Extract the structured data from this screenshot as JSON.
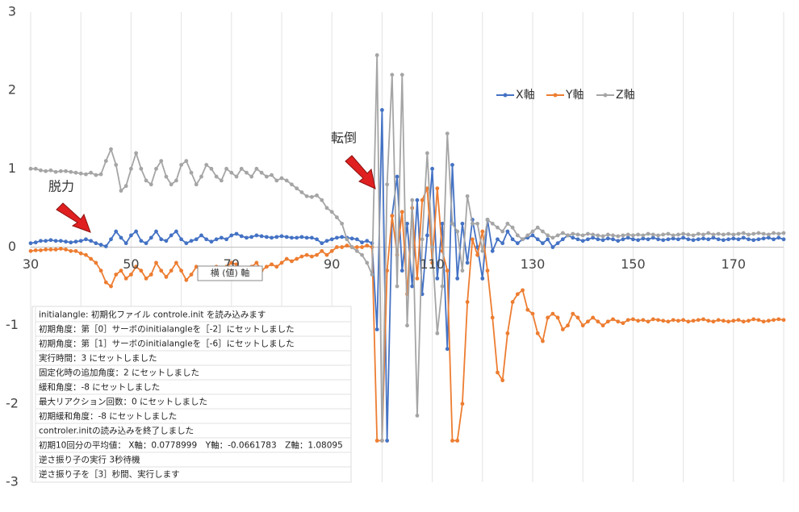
{
  "chart_data": {
    "type": "line",
    "x": [
      30,
      31,
      32,
      33,
      34,
      35,
      36,
      37,
      38,
      39,
      40,
      41,
      42,
      43,
      44,
      45,
      46,
      47,
      48,
      49,
      50,
      51,
      52,
      53,
      54,
      55,
      56,
      57,
      58,
      59,
      60,
      61,
      62,
      63,
      64,
      65,
      66,
      67,
      68,
      69,
      70,
      71,
      72,
      73,
      74,
      75,
      76,
      77,
      78,
      79,
      80,
      81,
      82,
      83,
      84,
      85,
      86,
      87,
      88,
      89,
      90,
      91,
      92,
      93,
      94,
      95,
      96,
      97,
      98,
      99,
      100,
      101,
      102,
      103,
      104,
      105,
      106,
      107,
      108,
      109,
      110,
      111,
      112,
      113,
      114,
      115,
      116,
      117,
      118,
      119,
      120,
      121,
      122,
      123,
      124,
      125,
      126,
      127,
      128,
      129,
      130,
      131,
      132,
      133,
      134,
      135,
      136,
      137,
      138,
      139,
      140,
      141,
      142,
      143,
      144,
      145,
      146,
      147,
      148,
      149,
      150,
      151,
      152,
      153,
      154,
      155,
      156,
      157,
      158,
      159,
      160,
      161,
      162,
      163,
      164,
      165,
      166,
      167,
      168,
      169,
      170,
      171,
      172,
      173,
      174,
      175,
      176,
      177,
      178,
      179,
      180
    ],
    "series": [
      {
        "name": "X軸",
        "color": "#4472c4",
        "values": [
          0.05,
          0.06,
          0.08,
          0.08,
          0.09,
          0.08,
          0.08,
          0.07,
          0.06,
          0.07,
          0.08,
          0.1,
          0.08,
          0.05,
          0.03,
          0.01,
          0.1,
          0.2,
          0.12,
          0.05,
          0.15,
          0.2,
          0.08,
          0.05,
          0.12,
          0.2,
          0.1,
          0.08,
          0.15,
          0.2,
          0.1,
          0.05,
          0.08,
          0.1,
          0.15,
          0.1,
          0.07,
          0.1,
          0.12,
          0.1,
          0.15,
          0.17,
          0.14,
          0.12,
          0.13,
          0.15,
          0.14,
          0.13,
          0.12,
          0.13,
          0.14,
          0.13,
          0.12,
          0.12,
          0.13,
          0.12,
          0.12,
          0.1,
          0.05,
          0.08,
          0.1,
          0.12,
          0.13,
          0.12,
          0.11,
          0.1,
          0.06,
          0.08,
          0.05,
          -1.05,
          1.75,
          -2.47,
          0.4,
          0.9,
          -0.3,
          0.3,
          -0.5,
          0.6,
          -0.6,
          0.15,
          1.0,
          -0.4,
          0.3,
          -1.3,
          1.05,
          -0.4,
          0.3,
          -0.2,
          0.35,
          0.0,
          -0.4,
          0.35,
          -0.05,
          0.1,
          0.05,
          0.2,
          0.1,
          0.05,
          0.1,
          0.12,
          0.15,
          0.1,
          0.05,
          0.1,
          0.0,
          0.05,
          0.1,
          0.15,
          0.12,
          0.1,
          0.08,
          0.1,
          0.12,
          0.1,
          0.09,
          0.11,
          0.1,
          0.08,
          0.1,
          0.12,
          0.1,
          0.09,
          0.11,
          0.1,
          0.12,
          0.1,
          0.09,
          0.1,
          0.11,
          0.1,
          0.12,
          0.1,
          0.09,
          0.1,
          0.11,
          0.1,
          0.12,
          0.1,
          0.09,
          0.1,
          0.11,
          0.1,
          0.12,
          0.1,
          0.09,
          0.1,
          0.11,
          0.12,
          0.1,
          0.12,
          0.1
        ]
      },
      {
        "name": "Y軸",
        "color": "#ed7d31",
        "values": [
          -0.05,
          -0.04,
          -0.04,
          -0.03,
          -0.03,
          -0.03,
          -0.02,
          -0.03,
          -0.05,
          -0.05,
          -0.08,
          -0.1,
          -0.15,
          -0.2,
          -0.3,
          -0.45,
          -0.5,
          -0.35,
          -0.3,
          -0.4,
          -0.35,
          -0.25,
          -0.3,
          -0.4,
          -0.35,
          -0.2,
          -0.3,
          -0.38,
          -0.3,
          -0.2,
          -0.3,
          -0.42,
          -0.35,
          -0.25,
          -0.3,
          -0.35,
          -0.28,
          -0.25,
          -0.3,
          -0.25,
          -0.2,
          -0.22,
          -0.28,
          -0.3,
          -0.25,
          -0.2,
          -0.3,
          -0.25,
          -0.22,
          -0.25,
          -0.2,
          -0.15,
          -0.18,
          -0.15,
          -0.12,
          -0.1,
          -0.12,
          -0.1,
          -0.05,
          -0.1,
          -0.05,
          0,
          0,
          0.02,
          0,
          0,
          0,
          0.02,
          0.0,
          -2.47,
          -2.47,
          -0.3,
          0.4,
          -0.1,
          0.45,
          -0.6,
          0.5,
          -0.4,
          0.6,
          0.75,
          -0.2,
          0.75,
          -0.05,
          -0.3,
          -2.47,
          -2.47,
          -2.0,
          -0.7,
          0.1,
          -0.1,
          0.2,
          -0.3,
          -0.9,
          -1.6,
          -1.7,
          -1.1,
          -0.7,
          -0.6,
          -0.55,
          -0.8,
          -0.85,
          -1.1,
          -1.2,
          -0.9,
          -0.85,
          -0.9,
          -1.05,
          -1.0,
          -0.85,
          -0.9,
          -1.0,
          -0.95,
          -0.9,
          -0.95,
          -1.0,
          -0.95,
          -0.92,
          -0.95,
          -0.97,
          -0.93,
          -0.92,
          -0.94,
          -0.93,
          -0.95,
          -0.92,
          -0.93,
          -0.94,
          -0.95,
          -0.93,
          -0.94,
          -0.93,
          -0.95,
          -0.94,
          -0.93,
          -0.92,
          -0.94,
          -0.95,
          -0.93,
          -0.94,
          -0.95,
          -0.94,
          -0.93,
          -0.95,
          -0.94,
          -0.92,
          -0.93,
          -0.95,
          -0.94,
          -0.93,
          -0.92,
          -0.93
        ]
      },
      {
        "name": "Z軸",
        "color": "#a5a5a5",
        "values": [
          1.0,
          1.0,
          0.98,
          0.97,
          0.98,
          0.96,
          0.97,
          0.97,
          0.96,
          0.95,
          0.94,
          0.93,
          0.95,
          0.92,
          0.93,
          1.1,
          1.25,
          1.05,
          0.72,
          0.78,
          1.0,
          1.2,
          1.0,
          0.85,
          0.8,
          1.0,
          1.1,
          0.9,
          0.8,
          0.85,
          1.05,
          1.1,
          0.95,
          0.8,
          0.9,
          1.05,
          1.0,
          0.9,
          0.85,
          1.0,
          0.95,
          0.9,
          1.0,
          0.95,
          0.9,
          1.0,
          0.95,
          0.9,
          0.92,
          0.85,
          0.88,
          0.85,
          0.8,
          0.75,
          0.7,
          0.65,
          0.64,
          0.66,
          0.6,
          0.5,
          0.45,
          0.38,
          0.3,
          0.1,
          0.0,
          -0.05,
          -0.1,
          -0.2,
          -0.35,
          2.45,
          -2.47,
          0.8,
          2.2,
          -0.5,
          2.2,
          -1.0,
          0.6,
          -2.15,
          0.1,
          1.2,
          0.0,
          -1.1,
          -0.5,
          1.45,
          0.3,
          0.2,
          -0.3,
          0.65,
          0.3,
          0.3,
          -0.05,
          0.35,
          0.3,
          0.25,
          0.2,
          0.3,
          0.25,
          0.15,
          0.1,
          0.15,
          0.2,
          0.25,
          0.2,
          0.15,
          0.12,
          0.15,
          0.18,
          0.15,
          0.17,
          0.16,
          0.15,
          0.17,
          0.16,
          0.15,
          0.14,
          0.16,
          0.15,
          0.14,
          0.15,
          0.16,
          0.15,
          0.16,
          0.15,
          0.17,
          0.16,
          0.15,
          0.16,
          0.17,
          0.15,
          0.16,
          0.17,
          0.16,
          0.15,
          0.17,
          0.16,
          0.18,
          0.16,
          0.17,
          0.16,
          0.17,
          0.16,
          0.17,
          0.18,
          0.16,
          0.17,
          0.18,
          0.17,
          0.16,
          0.18,
          0.17,
          0.18
        ]
      }
    ],
    "xlim": [
      30,
      180
    ],
    "xticks": [
      30,
      50,
      70,
      90,
      110,
      130,
      150,
      170
    ],
    "xgrid": [
      40,
      60,
      80,
      100,
      120,
      140,
      160,
      180
    ],
    "ylim": [
      -3,
      3
    ],
    "yticks": [
      -3,
      -2,
      -1,
      0,
      1,
      2,
      3
    ],
    "grid": true,
    "legend": "top-right",
    "annotations": [
      "脱力",
      "転倒"
    ],
    "axis_tooltip": "横 (値) 軸"
  },
  "log_lines": [
    "initialangle: 初期化ファイル controle.init を読み込みます",
    "初期角度：第［0］サーボのinitialangleを［-2］にセットしました",
    "初期角度：第［1］サーボのinitialangleを［-6］にセットしました",
    "実行時間：3 にセットしました",
    "固定化時の追加角度：2 にセットしました",
    "緩和角度：-8 にセットしました",
    "最大リアクション回数：0 にセットしました",
    "初期緩和角度：-8 にセットしました",
    "controler.initの読み込みを終了しました",
    "初期10回分の平均値： X軸：0.0778999　Y軸：-0.0661783　Z軸：1.08095",
    "逆さ振り子の実行 3秒待機",
    "逆さ振り子を［3］秒間、実行します"
  ]
}
